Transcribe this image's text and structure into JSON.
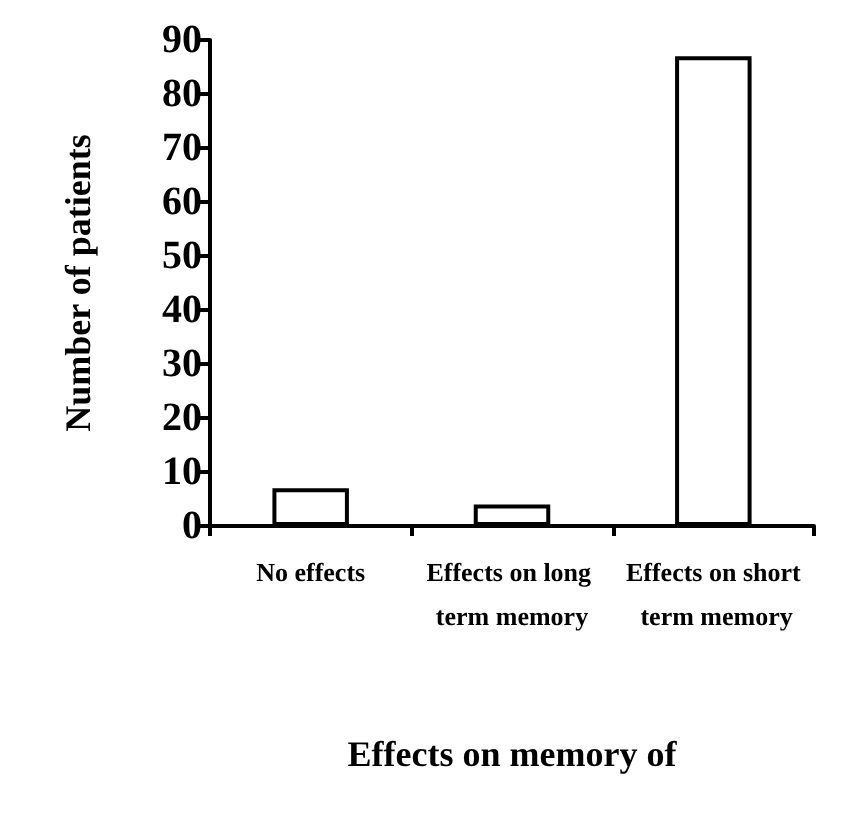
{
  "chart_data": {
    "type": "bar",
    "categories": [
      "No effects",
      "Effects on long term memory",
      "Effects on short term memory"
    ],
    "values": [
      7,
      4,
      87
    ],
    "color": "#ffffff",
    "xlabel": "Effects on memory of",
    "ylabel": "Number of patients",
    "ylim": [
      0,
      90
    ],
    "yticks": [
      0,
      10,
      20,
      30,
      40,
      50,
      60,
      70,
      80,
      90
    ]
  }
}
